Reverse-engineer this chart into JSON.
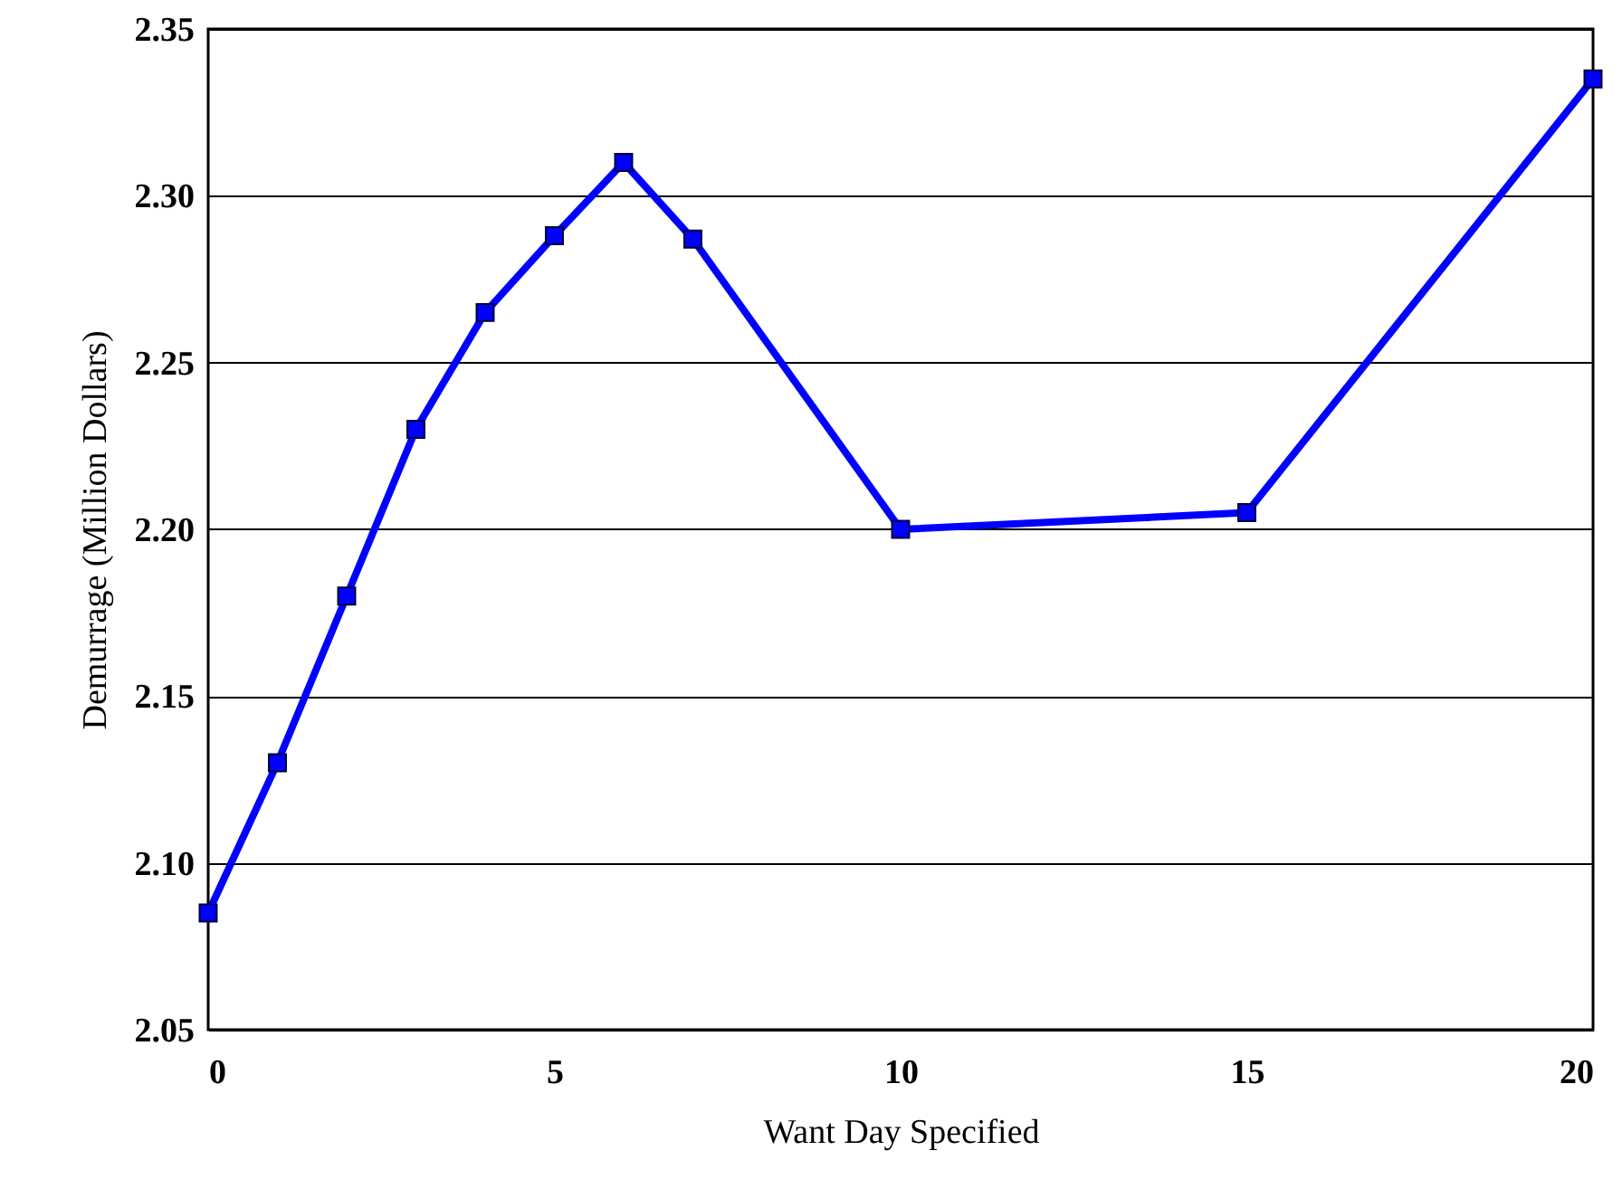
{
  "chart_data": {
    "type": "line",
    "xlabel": "Want Day Specified",
    "ylabel": "Demurrage (Million Dollars)",
    "x": [
      0,
      1,
      2,
      3,
      4,
      5,
      6,
      7,
      10,
      15,
      20
    ],
    "series": [
      {
        "color": "#0000ff",
        "values": [
          2.085,
          2.13,
          2.18,
          2.23,
          2.265,
          2.288,
          2.31,
          2.287,
          2.2,
          2.205,
          2.335
        ]
      }
    ],
    "xlim": [
      0,
      20
    ],
    "xticks": [
      0,
      5,
      10,
      15,
      20
    ],
    "ylim": [
      2.05,
      2.35
    ],
    "yticks": [
      {
        "value": 2.05,
        "label": "2.05"
      },
      {
        "value": 2.1,
        "label": "2.10"
      },
      {
        "value": 2.15,
        "label": "2.15"
      },
      {
        "value": 2.2,
        "label": "2.20"
      },
      {
        "value": 2.25,
        "label": "2.25"
      },
      {
        "value": 2.3,
        "label": "2.30"
      },
      {
        "value": 2.35,
        "label": "2.35"
      }
    ],
    "grid": "y",
    "marker": "square",
    "line_style": "solid"
  }
}
